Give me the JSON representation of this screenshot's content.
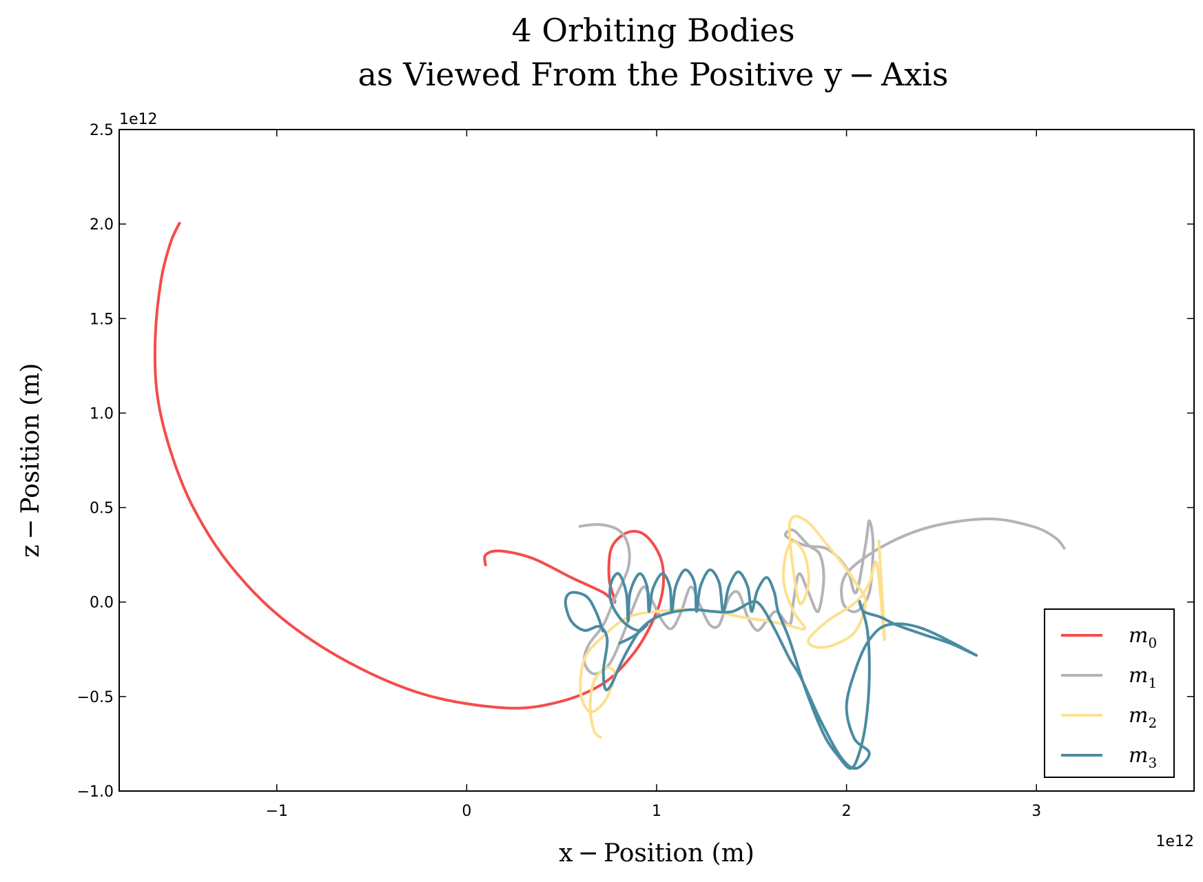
{
  "chart_data": {
    "type": "line",
    "title": "4 Orbiting Bodies",
    "subtitle": "as Viewed From the Positive y − Axis",
    "xlabel": "x − Position (m)",
    "ylabel": "z − Position (m)",
    "x_multiplier_label": "1e12",
    "y_multiplier_label": "1e12",
    "x_scale": 1000000000000.0,
    "y_scale": 1000000000000.0,
    "xlim": [
      -1.83,
      3.83
    ],
    "ylim": [
      -1.0,
      2.5
    ],
    "xticks": [
      -1,
      0,
      1,
      2,
      3
    ],
    "xtick_labels": [
      "−1",
      "0",
      "1",
      "2",
      "3"
    ],
    "yticks": [
      -1.0,
      -0.5,
      0.0,
      0.5,
      1.0,
      1.5,
      2.0,
      2.5
    ],
    "ytick_labels": [
      "−1.0",
      "−0.5",
      "0.0",
      "0.5",
      "1.0",
      "1.5",
      "2.0",
      "2.5"
    ],
    "grid": false,
    "legend_position": "lower-right",
    "series": [
      {
        "name": "m",
        "subscript": "0",
        "color": "#f44c4c",
        "points": [
          [
            -1.51,
            2.01
          ],
          [
            -1.56,
            1.9
          ],
          [
            -1.61,
            1.7
          ],
          [
            -1.64,
            1.4
          ],
          [
            -1.63,
            1.1
          ],
          [
            -1.56,
            0.8
          ],
          [
            -1.44,
            0.5
          ],
          [
            -1.25,
            0.2
          ],
          [
            -0.98,
            -0.08
          ],
          [
            -0.62,
            -0.32
          ],
          [
            -0.22,
            -0.49
          ],
          [
            0.2,
            -0.56
          ],
          [
            0.48,
            -0.53
          ],
          [
            0.72,
            -0.43
          ],
          [
            0.88,
            -0.27
          ],
          [
            0.98,
            -0.1
          ],
          [
            1.03,
            0.05
          ],
          [
            1.03,
            0.2
          ],
          [
            0.98,
            0.31
          ],
          [
            0.91,
            0.37
          ],
          [
            0.83,
            0.36
          ],
          [
            0.76,
            0.28
          ],
          [
            0.75,
            0.12
          ],
          [
            0.78,
            0.0
          ],
          [
            0.72,
            0.05
          ],
          [
            0.55,
            0.13
          ],
          [
            0.35,
            0.23
          ],
          [
            0.18,
            0.27
          ],
          [
            0.1,
            0.25
          ],
          [
            0.1,
            0.19
          ]
        ]
      },
      {
        "name": "m",
        "subscript": "1",
        "color": "#b3b3b8",
        "points": [
          [
            0.59,
            0.4
          ],
          [
            0.7,
            0.41
          ],
          [
            0.8,
            0.38
          ],
          [
            0.85,
            0.3
          ],
          [
            0.85,
            0.18
          ],
          [
            0.78,
            0.02
          ],
          [
            0.72,
            -0.12
          ],
          [
            0.64,
            -0.23
          ],
          [
            0.62,
            -0.32
          ],
          [
            0.67,
            -0.38
          ],
          [
            0.75,
            -0.33
          ],
          [
            0.82,
            -0.18
          ],
          [
            0.88,
            -0.02
          ],
          [
            0.93,
            0.08
          ],
          [
            0.97,
            0.02
          ],
          [
            1.03,
            -0.1
          ],
          [
            1.08,
            -0.14
          ],
          [
            1.13,
            -0.05
          ],
          [
            1.18,
            0.08
          ],
          [
            1.23,
            -0.02
          ],
          [
            1.28,
            -0.12
          ],
          [
            1.33,
            -0.12
          ],
          [
            1.38,
            0.02
          ],
          [
            1.43,
            0.05
          ],
          [
            1.48,
            -0.08
          ],
          [
            1.53,
            -0.15
          ],
          [
            1.58,
            -0.1
          ],
          [
            1.63,
            -0.05
          ],
          [
            1.7,
            -0.12
          ],
          [
            1.72,
            0.0
          ],
          [
            1.75,
            0.15
          ],
          [
            1.8,
            0.05
          ],
          [
            1.85,
            -0.05
          ],
          [
            1.88,
            0.12
          ],
          [
            1.86,
            0.25
          ],
          [
            1.8,
            0.3
          ],
          [
            1.72,
            0.38
          ],
          [
            1.68,
            0.35
          ],
          [
            1.78,
            0.3
          ],
          [
            1.9,
            0.28
          ],
          [
            2.0,
            0.18
          ],
          [
            2.05,
            0.05
          ],
          [
            2.1,
            0.3
          ],
          [
            2.12,
            0.43
          ],
          [
            2.14,
            0.3
          ],
          [
            2.12,
            0.05
          ],
          [
            2.05,
            -0.05
          ],
          [
            1.98,
            0.0
          ],
          [
            2.0,
            0.15
          ],
          [
            2.2,
            0.3
          ],
          [
            2.45,
            0.4
          ],
          [
            2.75,
            0.44
          ],
          [
            2.98,
            0.4
          ],
          [
            3.1,
            0.34
          ],
          [
            3.15,
            0.28
          ]
        ]
      },
      {
        "name": "m",
        "subscript": "2",
        "color": "#fde08f",
        "points": [
          [
            0.71,
            -0.72
          ],
          [
            0.67,
            -0.68
          ],
          [
            0.65,
            -0.55
          ],
          [
            0.67,
            -0.42
          ],
          [
            0.73,
            -0.35
          ],
          [
            0.78,
            -0.38
          ],
          [
            0.73,
            -0.52
          ],
          [
            0.65,
            -0.58
          ],
          [
            0.6,
            -0.48
          ],
          [
            0.62,
            -0.3
          ],
          [
            0.72,
            -0.18
          ],
          [
            0.85,
            -0.08
          ],
          [
            1.0,
            -0.05
          ],
          [
            1.15,
            -0.04
          ],
          [
            1.3,
            -0.05
          ],
          [
            1.45,
            -0.08
          ],
          [
            1.58,
            -0.1
          ],
          [
            1.68,
            -0.12
          ],
          [
            1.78,
            -0.14
          ],
          [
            1.72,
            -0.05
          ],
          [
            1.67,
            0.1
          ],
          [
            1.68,
            0.25
          ],
          [
            1.72,
            0.32
          ],
          [
            1.78,
            0.25
          ],
          [
            1.8,
            0.1
          ],
          [
            1.75,
            0.0
          ],
          [
            1.7,
            0.35
          ],
          [
            1.72,
            0.45
          ],
          [
            1.8,
            0.42
          ],
          [
            1.9,
            0.3
          ],
          [
            1.98,
            0.2
          ],
          [
            2.05,
            0.1
          ],
          [
            2.1,
            0.0
          ],
          [
            2.05,
            -0.15
          ],
          [
            1.95,
            -0.22
          ],
          [
            1.85,
            -0.24
          ],
          [
            1.8,
            -0.2
          ],
          [
            1.9,
            -0.1
          ],
          [
            2.05,
            0.0
          ],
          [
            2.12,
            0.1
          ],
          [
            2.16,
            0.2
          ],
          [
            2.2,
            -0.2
          ],
          [
            2.17,
            0.33
          ]
        ]
      },
      {
        "name": "m",
        "subscript": "3",
        "color": "#4a8ba2",
        "points": [
          [
            0.8,
            -0.22
          ],
          [
            0.88,
            -0.18
          ],
          [
            0.95,
            -0.12
          ],
          [
            0.9,
            -0.15
          ],
          [
            0.82,
            -0.1
          ],
          [
            0.76,
            0.0
          ],
          [
            0.76,
            0.1
          ],
          [
            0.8,
            0.15
          ],
          [
            0.84,
            0.05
          ],
          [
            0.85,
            -0.1
          ],
          [
            0.86,
            0.05
          ],
          [
            0.91,
            0.15
          ],
          [
            0.95,
            0.08
          ],
          [
            0.96,
            -0.05
          ],
          [
            0.98,
            0.07
          ],
          [
            1.03,
            0.15
          ],
          [
            1.07,
            0.08
          ],
          [
            1.08,
            -0.05
          ],
          [
            1.1,
            0.08
          ],
          [
            1.15,
            0.17
          ],
          [
            1.2,
            0.1
          ],
          [
            1.21,
            -0.05
          ],
          [
            1.23,
            0.08
          ],
          [
            1.28,
            0.17
          ],
          [
            1.33,
            0.1
          ],
          [
            1.35,
            -0.05
          ],
          [
            1.38,
            0.08
          ],
          [
            1.43,
            0.16
          ],
          [
            1.48,
            0.08
          ],
          [
            1.5,
            -0.05
          ],
          [
            1.53,
            0.06
          ],
          [
            1.58,
            0.13
          ],
          [
            1.62,
            0.05
          ],
          [
            1.64,
            -0.05
          ],
          [
            1.7,
            -0.2
          ],
          [
            1.78,
            -0.45
          ],
          [
            1.88,
            -0.7
          ],
          [
            1.96,
            -0.82
          ],
          [
            2.02,
            -0.88
          ],
          [
            2.06,
            -0.82
          ],
          [
            2.1,
            -0.65
          ],
          [
            2.12,
            -0.4
          ],
          [
            2.11,
            -0.15
          ],
          [
            2.07,
            0.0
          ],
          [
            2.09,
            -0.05
          ],
          [
            2.18,
            -0.08
          ],
          [
            2.26,
            -0.12
          ],
          [
            2.4,
            -0.17
          ],
          [
            2.55,
            -0.22
          ],
          [
            2.68,
            -0.28
          ],
          [
            2.4,
            -0.14
          ],
          [
            2.22,
            -0.12
          ],
          [
            2.12,
            -0.2
          ],
          [
            2.05,
            -0.35
          ],
          [
            2.0,
            -0.55
          ],
          [
            2.04,
            -0.72
          ],
          [
            2.12,
            -0.8
          ],
          [
            2.05,
            -0.88
          ],
          [
            1.97,
            -0.82
          ],
          [
            1.86,
            -0.62
          ],
          [
            1.76,
            -0.4
          ],
          [
            1.7,
            -0.3
          ],
          [
            1.62,
            -0.14
          ],
          [
            1.55,
            -0.02
          ],
          [
            1.5,
            0.0
          ],
          [
            1.4,
            -0.05
          ],
          [
            1.3,
            -0.05
          ],
          [
            1.2,
            -0.04
          ],
          [
            1.1,
            -0.05
          ],
          [
            1.0,
            -0.08
          ],
          [
            0.92,
            -0.14
          ],
          [
            0.85,
            -0.25
          ],
          [
            0.8,
            -0.35
          ],
          [
            0.76,
            -0.44
          ],
          [
            0.73,
            -0.46
          ],
          [
            0.72,
            -0.36
          ],
          [
            0.74,
            -0.2
          ],
          [
            0.7,
            -0.13
          ],
          [
            0.62,
            -0.15
          ],
          [
            0.55,
            -0.1
          ],
          [
            0.52,
            0.0
          ],
          [
            0.55,
            0.05
          ],
          [
            0.63,
            0.03
          ],
          [
            0.68,
            -0.05
          ],
          [
            0.72,
            -0.16
          ]
        ]
      }
    ]
  }
}
